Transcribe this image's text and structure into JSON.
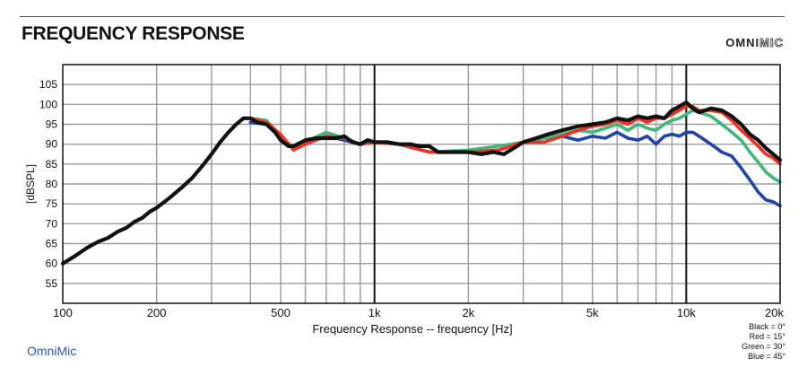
{
  "header": {
    "title": "FREQUENCY RESPONSE",
    "logo_part1": "OMNI",
    "logo_part2": "MIC"
  },
  "footer": {
    "brand": "OmniMic"
  },
  "chart_data": {
    "type": "line",
    "title": "FREQUENCY RESPONSE",
    "xlabel": "Frequency Response -- frequency [Hz]",
    "ylabel": "[dBSPL]",
    "xscale": "log",
    "xlim": [
      100,
      20000
    ],
    "ylim": [
      50,
      110
    ],
    "grid": true,
    "xticks": [
      {
        "value": 100,
        "label": "100"
      },
      {
        "value": 200,
        "label": "200"
      },
      {
        "value": 500,
        "label": "500"
      },
      {
        "value": 1000,
        "label": "1k"
      },
      {
        "value": 2000,
        "label": "2k"
      },
      {
        "value": 5000,
        "label": "5k"
      },
      {
        "value": 10000,
        "label": "10k"
      },
      {
        "value": 20000,
        "label": "20k"
      }
    ],
    "yticks": [
      55,
      60,
      65,
      70,
      75,
      80,
      85,
      90,
      95,
      100,
      105
    ],
    "legend_position": "bottom-right",
    "legend": [
      {
        "text": "Black = 0°",
        "color": "#111111"
      },
      {
        "text": "Red = 15°",
        "color": "#ee3322"
      },
      {
        "text": "Green = 30°",
        "color": "#3fb87a"
      },
      {
        "text": "Blue = 45°",
        "color": "#2244aa"
      }
    ],
    "series": [
      {
        "color": "#2244aa",
        "x": [
          400,
          450,
          500,
          550,
          600,
          700,
          800,
          900,
          1000,
          1200,
          1500,
          2000,
          2500,
          3000,
          3500,
          4000,
          4500,
          5000,
          5500,
          6000,
          6500,
          7000,
          7500,
          8000,
          8500,
          9000,
          9500,
          10000,
          10500,
          11000,
          12000,
          13000,
          14000,
          15000,
          16000,
          17000,
          18000,
          19000,
          20000
        ],
        "y": [
          95.5,
          95,
          92,
          89,
          90,
          92,
          91,
          90,
          90.5,
          90,
          88,
          88,
          88.5,
          90.5,
          91.5,
          92,
          91,
          92,
          91.5,
          93,
          91.5,
          91,
          92,
          90,
          92,
          92.5,
          92,
          93,
          93,
          92,
          90,
          88,
          87,
          84,
          81,
          78,
          76,
          75.5,
          74.5
        ]
      },
      {
        "color": "#3fb87a",
        "x": [
          400,
          450,
          500,
          550,
          600,
          700,
          800,
          900,
          1000,
          1200,
          1500,
          2000,
          2500,
          3000,
          3500,
          4000,
          4500,
          5000,
          5500,
          6000,
          6500,
          7000,
          7500,
          8000,
          8500,
          9000,
          9500,
          10000,
          10500,
          11000,
          12000,
          13000,
          14000,
          15000,
          16000,
          17000,
          18000,
          19000,
          20000
        ],
        "y": [
          96.5,
          96,
          92,
          89,
          90.5,
          93,
          91.5,
          90,
          90.5,
          90,
          88,
          88.5,
          89.5,
          90.5,
          91.5,
          92.5,
          93.5,
          93,
          94,
          95,
          93.5,
          95,
          94,
          93.5,
          95,
          96,
          96.5,
          97.5,
          98.5,
          98,
          97,
          95,
          93,
          91,
          88,
          85.5,
          83,
          81.5,
          80.5
        ]
      },
      {
        "color": "#ee3322",
        "x": [
          400,
          450,
          500,
          550,
          600,
          700,
          800,
          900,
          1000,
          1200,
          1500,
          2000,
          2500,
          3000,
          3500,
          4000,
          4500,
          5000,
          5500,
          6000,
          6500,
          7000,
          7500,
          8000,
          8500,
          9000,
          9500,
          10000,
          10500,
          11000,
          12000,
          13000,
          14000,
          15000,
          16000,
          17000,
          18000,
          19000,
          20000
        ],
        "y": [
          96.5,
          95.5,
          92.5,
          88.5,
          90,
          92,
          91.5,
          90,
          90.5,
          90,
          88,
          88,
          88.5,
          90.5,
          90.5,
          92,
          93.5,
          94.5,
          95,
          96,
          95,
          96.5,
          95.5,
          96.5,
          96.5,
          97.5,
          98.5,
          99.5,
          99.5,
          98.5,
          98.5,
          98,
          96,
          93.5,
          91.5,
          89.5,
          87.5,
          86.5,
          85
        ]
      },
      {
        "color": "#111111",
        "x": [
          100,
          105,
          110,
          120,
          130,
          140,
          150,
          160,
          170,
          180,
          190,
          200,
          220,
          240,
          260,
          280,
          300,
          320,
          340,
          360,
          380,
          400,
          420,
          450,
          480,
          500,
          530,
          550,
          600,
          650,
          700,
          750,
          800,
          850,
          900,
          950,
          1000,
          1100,
          1200,
          1300,
          1400,
          1500,
          1600,
          1800,
          2000,
          2200,
          2400,
          2600,
          2800,
          3000,
          3300,
          3600,
          4000,
          4500,
          5000,
          5500,
          6000,
          6500,
          7000,
          7500,
          8000,
          8500,
          9000,
          9500,
          10000,
          10500,
          11000,
          11500,
          12000,
          13000,
          14000,
          15000,
          16000,
          17000,
          18000,
          19000,
          20000
        ],
        "y": [
          60,
          61,
          62,
          64,
          65.5,
          66.5,
          68,
          69,
          70.5,
          71.5,
          73,
          74,
          76.5,
          79,
          81.5,
          84.5,
          87.5,
          90.5,
          93,
          95,
          96.5,
          96.5,
          95.5,
          95,
          93,
          91,
          89.5,
          89.5,
          91,
          91.5,
          91.5,
          91.5,
          92,
          90.5,
          90,
          91,
          90.5,
          90.5,
          90,
          90,
          89.5,
          89.5,
          88,
          88,
          88,
          87.5,
          88,
          87.5,
          89,
          90.5,
          91.5,
          92.5,
          93.5,
          94.5,
          95,
          95.5,
          96.5,
          96,
          97,
          96.5,
          97,
          96.5,
          98.5,
          99.5,
          100.5,
          99,
          98,
          98.5,
          99,
          98.5,
          97,
          95,
          92.5,
          91,
          89,
          87.5,
          86
        ]
      }
    ]
  }
}
